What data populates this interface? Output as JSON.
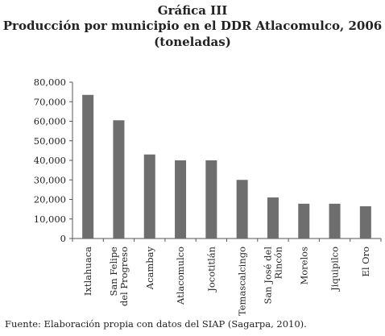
{
  "figure": {
    "label": "Gráfica III",
    "title": "Producción por municipio en el DDR Atlacomulco, 2006",
    "subtitle": "(toneladas)"
  },
  "source": {
    "prefix": "Fuente: Elaboración propia con datos del ",
    "org": "SIAP",
    "suffix": " (Sagarpa, 2010)."
  },
  "chart_data": {
    "type": "bar",
    "title": "Producción por municipio en el DDR Atlacomulco, 2006",
    "subtitle": "(toneladas)",
    "xlabel": "",
    "ylabel": "",
    "ylim": [
      0,
      80000
    ],
    "yticks": [
      0,
      10000,
      20000,
      30000,
      40000,
      50000,
      60000,
      70000,
      80000
    ],
    "ytick_labels": [
      "0",
      "10,000",
      "20,000",
      "30,000",
      "40,000",
      "50,000",
      "60,000",
      "70,000",
      "80,000"
    ],
    "grid": false,
    "legend": "none",
    "bar_color": "#6e6e6e",
    "categories": [
      "Ixtlahuaca",
      "San Felipe del Progreso",
      "Acambay",
      "Atlacomulco",
      "Jocotitlán",
      "Temascalcingo",
      "San José del Rincón",
      "Morelos",
      "Jiquipilco",
      "El Oro"
    ],
    "category_lines": [
      [
        "Ixtlahuaca"
      ],
      [
        "San Felipe",
        "del Progreso"
      ],
      [
        "Acambay"
      ],
      [
        "Atlacomulco"
      ],
      [
        "Jocotitlán"
      ],
      [
        "Temascalcingo"
      ],
      [
        "San José del",
        "Rincón"
      ],
      [
        "Morelos"
      ],
      [
        "Jiquipilco"
      ],
      [
        "El Oro"
      ]
    ],
    "values": [
      73500,
      60500,
      43000,
      40000,
      40000,
      30000,
      21000,
      17800,
      17800,
      16500
    ]
  }
}
